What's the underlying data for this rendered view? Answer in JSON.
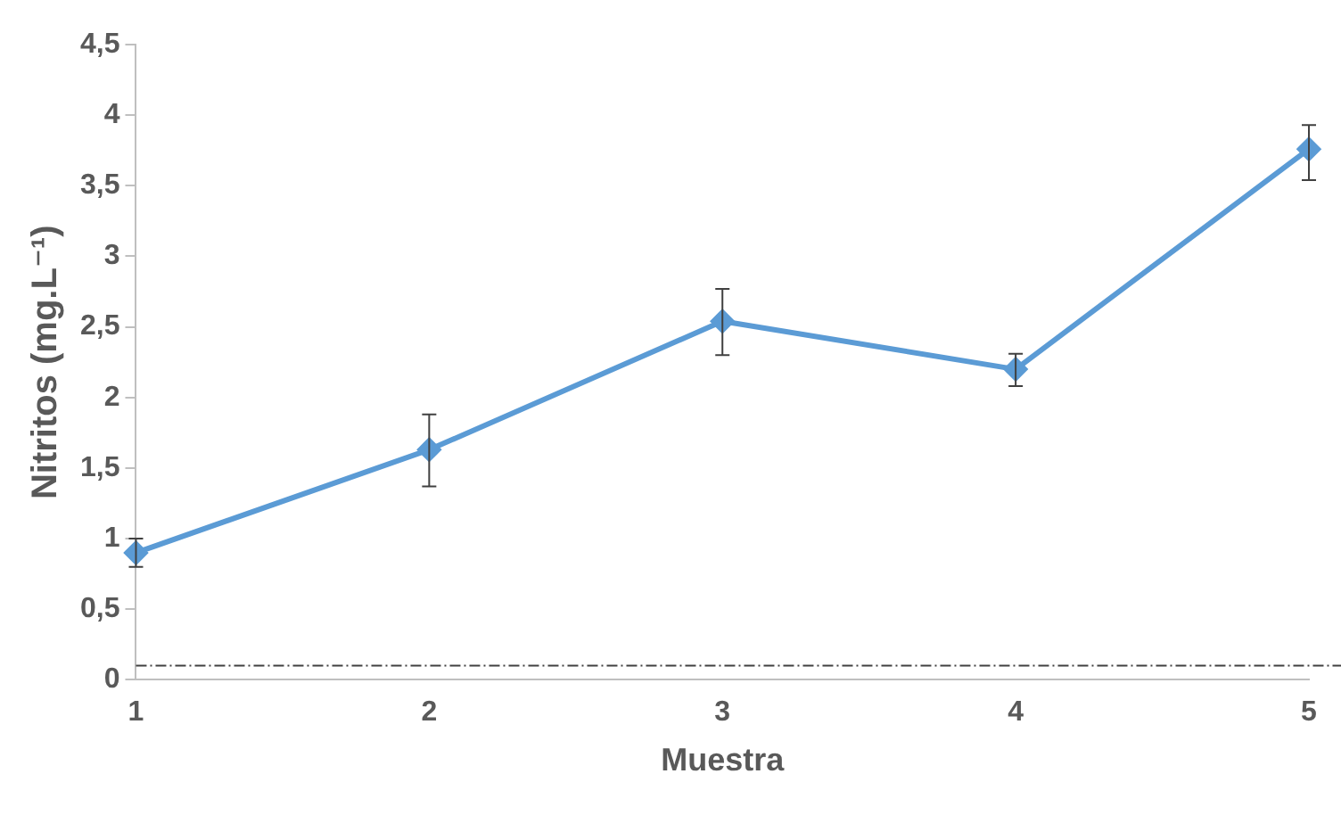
{
  "chart_data": {
    "type": "line",
    "xlabel": "Muestra",
    "ylabel": "Nitritos (mg.L⁻¹)",
    "categories": [
      "1",
      "2",
      "3",
      "4",
      "5"
    ],
    "series": [
      {
        "color": "#5b9bd5",
        "values": [
          0.9,
          1.63,
          2.54,
          2.2,
          3.76
        ],
        "errors": [
          [
            0.8,
            1.0
          ],
          [
            1.37,
            1.88
          ],
          [
            2.3,
            2.77
          ],
          [
            2.08,
            2.31
          ],
          [
            3.54,
            3.93
          ]
        ]
      }
    ],
    "ylim": [
      0,
      4.5
    ],
    "yticks": [
      {
        "value": 0,
        "label": "0"
      },
      {
        "value": 0.5,
        "label": "0,5"
      },
      {
        "value": 1,
        "label": "1"
      },
      {
        "value": 1.5,
        "label": "1,5"
      },
      {
        "value": 2,
        "label": "2"
      },
      {
        "value": 2.5,
        "label": "2,5"
      },
      {
        "value": 3,
        "label": "3"
      },
      {
        "value": 3.5,
        "label": "3,5"
      },
      {
        "value": 4,
        "label": "4"
      },
      {
        "value": 4.5,
        "label": "4,5"
      }
    ],
    "ref_lines": [
      {
        "axis": "y",
        "value": 0.1,
        "color": "#404040",
        "line_style": "dashed"
      }
    ],
    "grid": false,
    "legend": false,
    "marker": "diamond",
    "line_style": "solid"
  }
}
